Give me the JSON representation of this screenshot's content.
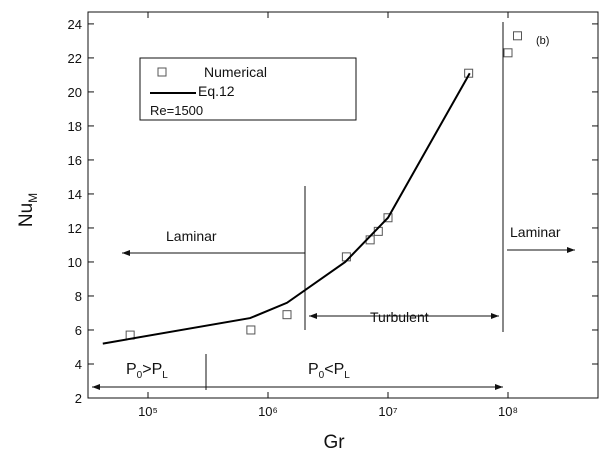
{
  "chart_data": {
    "type": "scatter",
    "x_label": "Gr",
    "y_label": [
      "Nu",
      "M"
    ],
    "xscale": "log",
    "xlim": [
      31623,
      562341325
    ],
    "xticks": [
      {
        "value": 100000,
        "label": "10⁵"
      },
      {
        "value": 1000000,
        "label": "10⁶"
      },
      {
        "value": 10000000,
        "label": "10⁷"
      },
      {
        "value": 100000000,
        "label": "10⁸"
      }
    ],
    "ylim": [
      2,
      24.7
    ],
    "yticks": [
      2,
      4,
      6,
      8,
      10,
      12,
      14,
      16,
      18,
      20,
      22,
      24
    ],
    "series": [
      {
        "name": "Numerical",
        "type": "scatter",
        "color": "#555555",
        "x": [
          71000,
          720000,
          1440000,
          4500000,
          7100000,
          8300000,
          10000000,
          47000000,
          120000000,
          100000000
        ],
        "values": [
          5.7,
          6.0,
          6.9,
          10.3,
          11.3,
          11.8,
          12.6,
          21.1,
          23.3,
          22.3
        ]
      },
      {
        "name": "Eq.12",
        "type": "line",
        "color": "#000000",
        "x": [
          42000,
          710000,
          1440000,
          4400000,
          10000000,
          48000000
        ],
        "values": [
          5.2,
          6.7,
          7.6,
          10.0,
          12.6,
          21.1
        ]
      }
    ],
    "annotations": {
      "re": "Re=1500",
      "panel": "(b)",
      "laminar_left": "Laminar",
      "laminar_right": "Laminar",
      "turbulent": "Turbulent",
      "p_greater": [
        "P",
        "0",
        ">P",
        "L"
      ],
      "p_less": [
        "P",
        "0",
        "<P",
        "L"
      ]
    }
  }
}
